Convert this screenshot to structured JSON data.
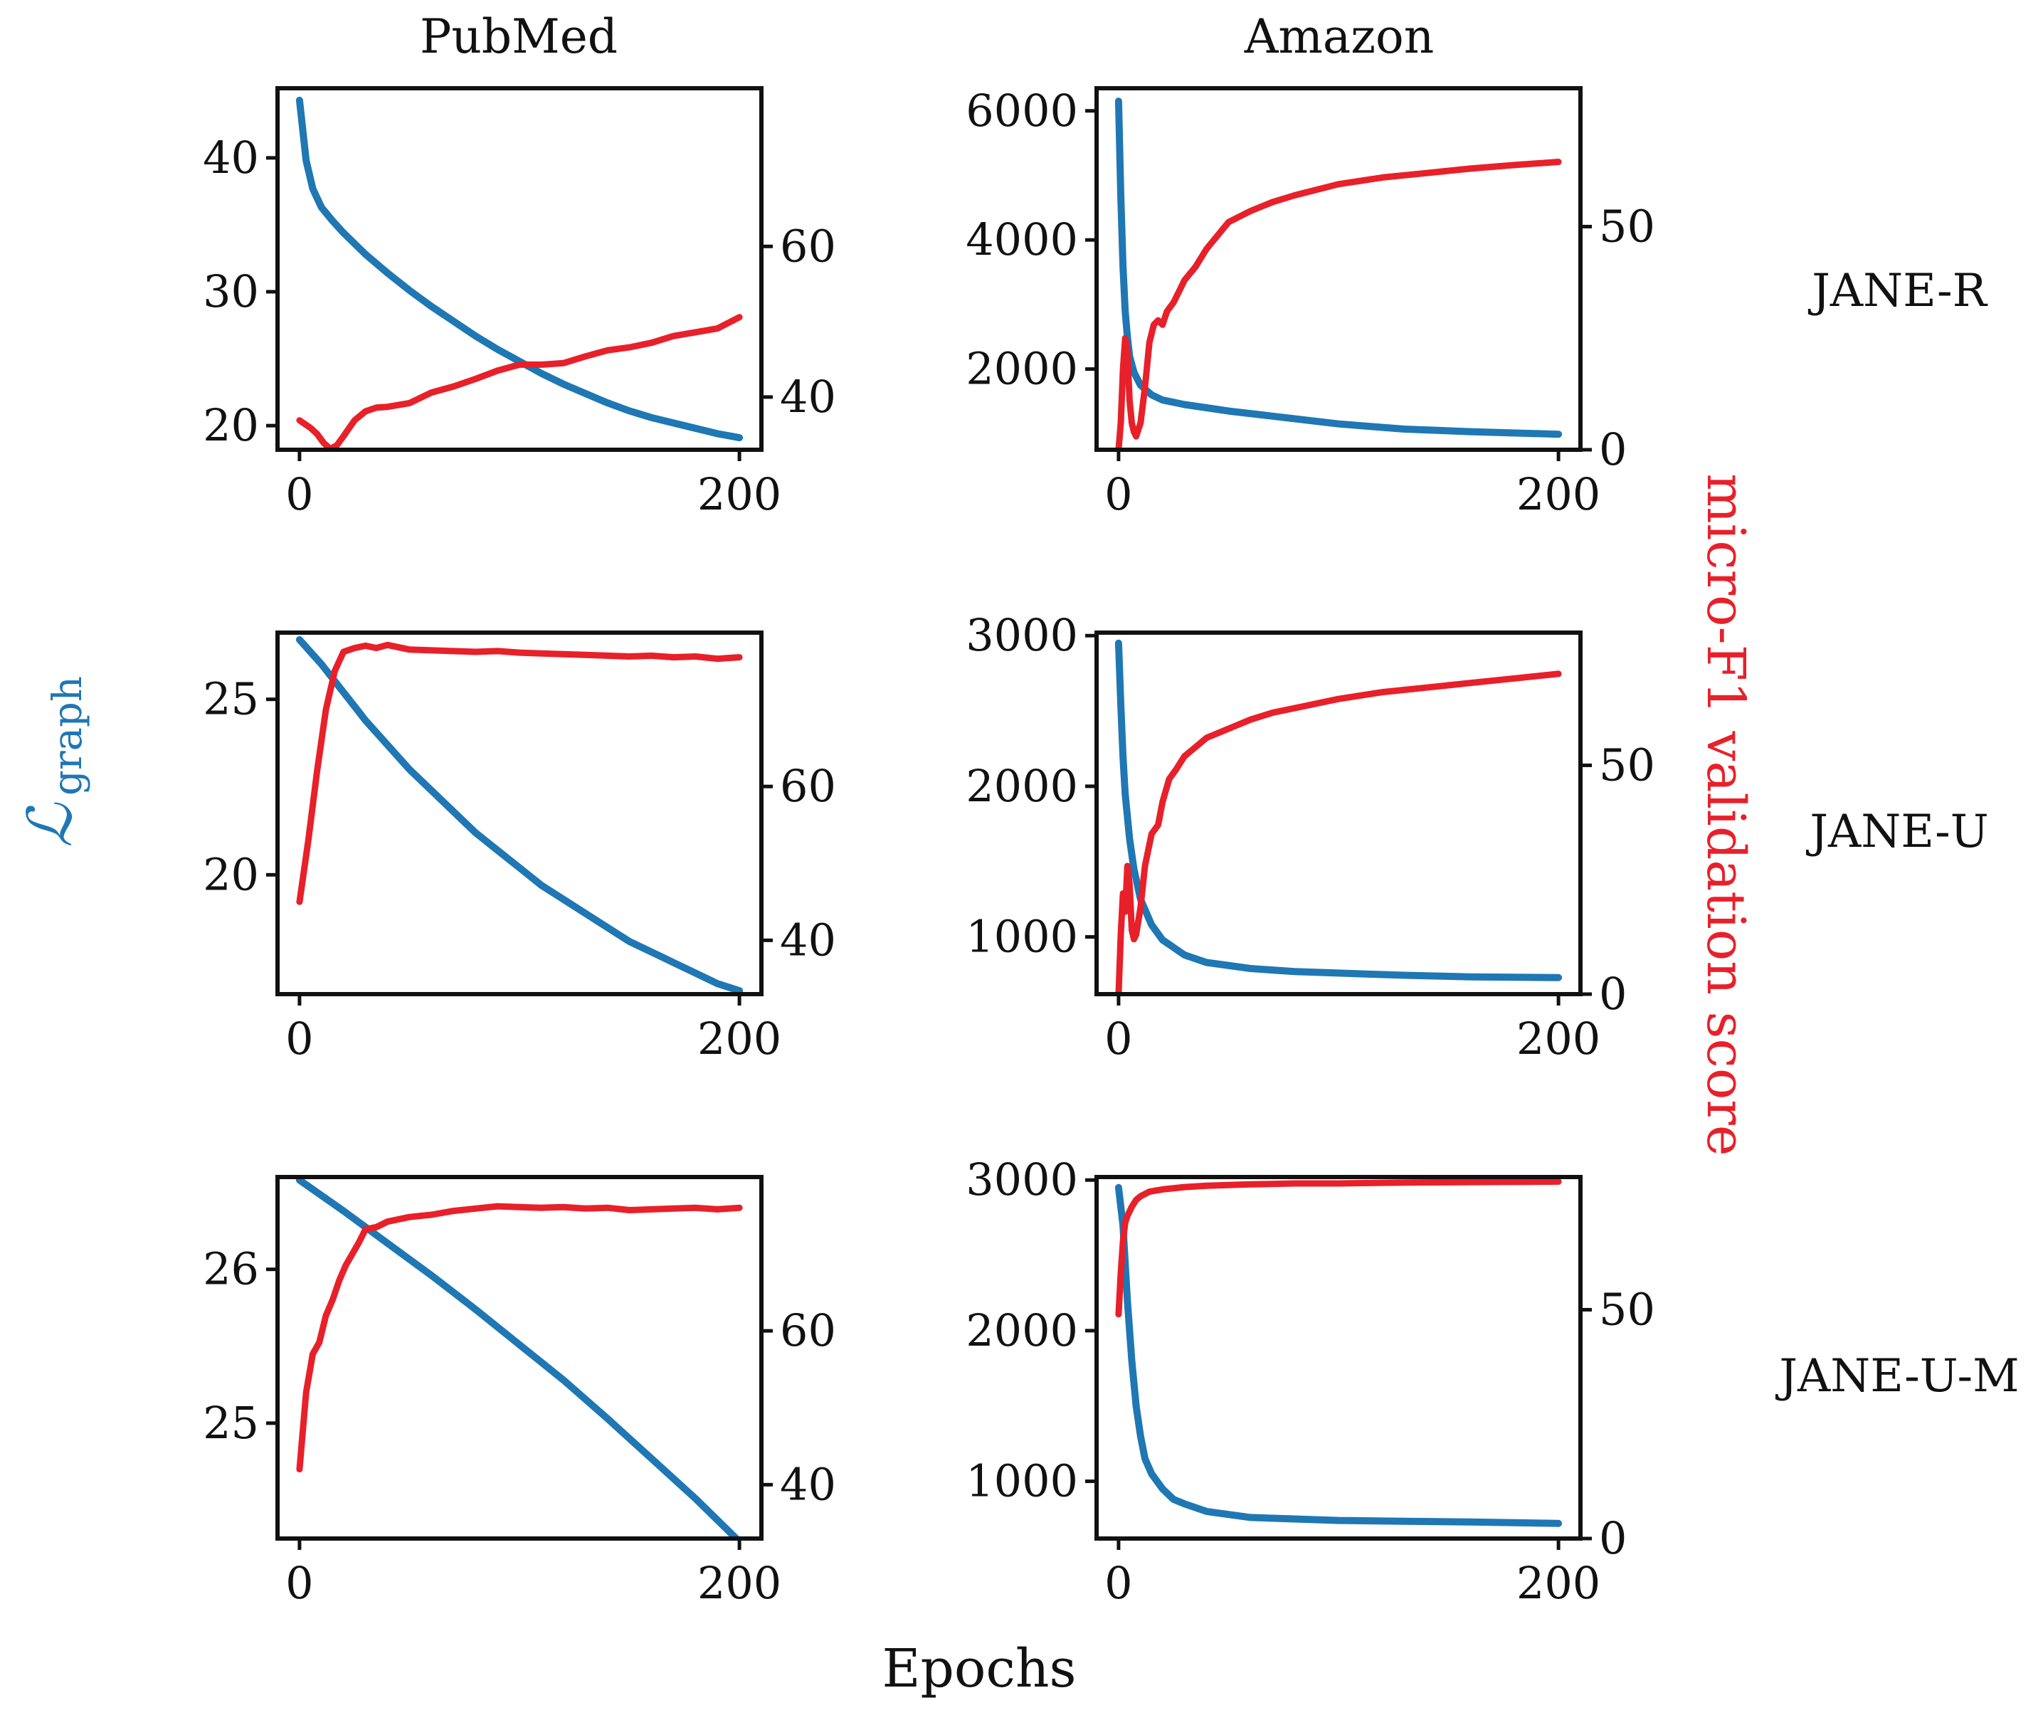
{
  "figure": {
    "column_titles": [
      "PubMed",
      "Amazon"
    ],
    "row_labels": [
      "JANE-R",
      "JANE-U",
      "JANE-U-M"
    ],
    "xlabel": "Epochs",
    "left_ylabel_main": "ℒ",
    "left_ylabel_sub": "graph",
    "right_ylabel": "micro-F1 validation score",
    "colors": {
      "loss": "#1f77b4",
      "f1": "#e8202a",
      "axis": "#111111"
    }
  },
  "chart_data": [
    {
      "type": "line",
      "dataset": "PubMed",
      "model": "JANE-R",
      "xlim": [
        -10,
        210
      ],
      "xticks": [
        0,
        200
      ],
      "y_left_lim": [
        18.2,
        45.2
      ],
      "y_left_ticks": [
        20,
        30,
        40
      ],
      "y_right_lim": [
        33,
        81
      ],
      "y_right_ticks": [
        40,
        60
      ],
      "loss": {
        "name": "L_graph",
        "x": [
          0,
          3,
          6,
          10,
          15,
          20,
          30,
          40,
          50,
          60,
          70,
          80,
          90,
          100,
          110,
          120,
          130,
          140,
          150,
          160,
          170,
          180,
          190,
          200
        ],
        "y": [
          44.3,
          39.8,
          37.7,
          36.3,
          35.3,
          34.4,
          32.8,
          31.4,
          30.1,
          28.9,
          27.8,
          26.7,
          25.7,
          24.8,
          23.9,
          23.1,
          22.4,
          21.7,
          21.1,
          20.6,
          20.2,
          19.8,
          19.4,
          19.1
        ]
      },
      "f1": {
        "name": "micro-F1",
        "x": [
          0,
          5,
          8,
          11,
          14,
          17,
          20,
          25,
          30,
          35,
          40,
          50,
          60,
          70,
          80,
          90,
          100,
          110,
          120,
          130,
          140,
          150,
          160,
          170,
          180,
          190,
          200
        ],
        "y": [
          36.9,
          35.9,
          35.1,
          33.9,
          33.1,
          33.6,
          34.8,
          36.9,
          38.1,
          38.6,
          38.7,
          39.2,
          40.6,
          41.4,
          42.4,
          43.5,
          44.3,
          44.3,
          44.5,
          45.4,
          46.2,
          46.6,
          47.2,
          48.1,
          48.6,
          49.1,
          50.6
        ]
      }
    },
    {
      "type": "line",
      "dataset": "Amazon",
      "model": "JANE-R",
      "xlim": [
        -10,
        210
      ],
      "xticks": [
        0,
        200
      ],
      "y_left_lim": [
        750,
        6350
      ],
      "y_left_ticks": [
        2000,
        4000,
        6000
      ],
      "y_right_lim": [
        0,
        81
      ],
      "y_right_ticks": [
        0,
        50
      ],
      "loss": {
        "name": "L_graph",
        "x": [
          0,
          1,
          2,
          3,
          4,
          5,
          7,
          10,
          15,
          20,
          30,
          40,
          50,
          70,
          100,
          130,
          160,
          200
        ],
        "y": [
          6150,
          4700,
          3600,
          2900,
          2500,
          2200,
          1950,
          1750,
          1600,
          1520,
          1450,
          1400,
          1350,
          1270,
          1150,
          1070,
          1030,
          990
        ]
      },
      "f1": {
        "name": "micro-F1",
        "x": [
          0,
          1,
          2,
          3,
          4,
          5,
          6,
          7,
          8,
          10,
          12,
          14,
          16,
          18,
          20,
          22,
          25,
          28,
          30,
          35,
          40,
          50,
          60,
          70,
          80,
          100,
          120,
          140,
          160,
          180,
          200
        ],
        "y": [
          0,
          6,
          18,
          25,
          22,
          11,
          6,
          4,
          3,
          6,
          14,
          24,
          28,
          29,
          28,
          31,
          33,
          36,
          38,
          41,
          45,
          51,
          53.5,
          55.5,
          57,
          59.5,
          61,
          62,
          63,
          63.8,
          64.5
        ]
      }
    },
    {
      "type": "line",
      "dataset": "PubMed",
      "model": "JANE-U",
      "xlim": [
        -10,
        210
      ],
      "xticks": [
        0,
        200
      ],
      "y_left_lim": [
        16.6,
        26.9
      ],
      "y_left_ticks": [
        20,
        25
      ],
      "y_right_lim": [
        33,
        80
      ],
      "y_right_ticks": [
        40,
        60
      ],
      "loss": {
        "name": "L_graph",
        "x": [
          0,
          10,
          20,
          30,
          40,
          50,
          60,
          70,
          80,
          90,
          100,
          110,
          120,
          130,
          140,
          150,
          160,
          170,
          180,
          190,
          200
        ],
        "y": [
          26.7,
          26.0,
          25.2,
          24.4,
          23.7,
          23.0,
          22.4,
          21.8,
          21.2,
          20.7,
          20.2,
          19.7,
          19.3,
          18.9,
          18.5,
          18.1,
          17.8,
          17.5,
          17.2,
          16.9,
          16.7
        ]
      },
      "f1": {
        "name": "micro-F1",
        "x": [
          0,
          4,
          8,
          12,
          16,
          20,
          25,
          30,
          35,
          40,
          50,
          60,
          70,
          80,
          90,
          100,
          110,
          120,
          130,
          140,
          150,
          160,
          170,
          180,
          190,
          200
        ],
        "y": [
          45,
          53,
          62,
          70,
          75,
          77.5,
          78,
          78.3,
          78,
          78.4,
          77.8,
          77.7,
          77.6,
          77.5,
          77.6,
          77.4,
          77.3,
          77.2,
          77.1,
          77.0,
          76.9,
          77.0,
          76.8,
          76.9,
          76.6,
          76.8
        ]
      }
    },
    {
      "type": "line",
      "dataset": "Amazon",
      "model": "JANE-U",
      "xlim": [
        -10,
        210
      ],
      "xticks": [
        0,
        200
      ],
      "y_left_lim": [
        620,
        3020
      ],
      "y_left_ticks": [
        1000,
        2000,
        3000
      ],
      "y_right_lim": [
        0,
        79
      ],
      "y_right_ticks": [
        0,
        50
      ],
      "loss": {
        "name": "L_graph",
        "x": [
          0,
          1,
          2,
          3,
          5,
          7,
          10,
          15,
          20,
          30,
          40,
          60,
          80,
          100,
          130,
          160,
          200
        ],
        "y": [
          2950,
          2550,
          2200,
          1950,
          1650,
          1450,
          1250,
          1080,
          980,
          880,
          830,
          790,
          770,
          760,
          745,
          735,
          730
        ]
      },
      "f1": {
        "name": "micro-F1",
        "x": [
          0,
          1,
          2,
          3,
          4,
          5,
          6,
          7,
          8,
          10,
          12,
          15,
          18,
          20,
          23,
          26,
          30,
          35,
          40,
          50,
          60,
          70,
          80,
          100,
          120,
          140,
          160,
          180,
          200
        ],
        "y": [
          0,
          13,
          22,
          18,
          28,
          24,
          14,
          12,
          13,
          19,
          28,
          35,
          37,
          42,
          47,
          49,
          52,
          54,
          56,
          58,
          60,
          61.5,
          62.5,
          64.5,
          66,
          67,
          68,
          69,
          70
        ]
      }
    },
    {
      "type": "line",
      "dataset": "PubMed",
      "model": "JANE-U-M",
      "xlim": [
        -10,
        210
      ],
      "xticks": [
        0,
        200
      ],
      "y_left_lim": [
        24.25,
        26.6
      ],
      "y_left_ticks": [
        25,
        26
      ],
      "y_right_lim": [
        33,
        80
      ],
      "y_right_ticks": [
        40,
        60
      ],
      "loss": {
        "name": "L_graph",
        "x": [
          0,
          20,
          40,
          60,
          80,
          100,
          120,
          140,
          160,
          180,
          200
        ],
        "y": [
          26.58,
          26.38,
          26.17,
          25.96,
          25.74,
          25.51,
          25.28,
          25.03,
          24.77,
          24.51,
          24.23
        ]
      },
      "f1": {
        "name": "micro-F1",
        "x": [
          0,
          3,
          6,
          9,
          12,
          15,
          18,
          21,
          24,
          27,
          30,
          35,
          40,
          50,
          60,
          70,
          80,
          90,
          100,
          110,
          120,
          130,
          140,
          150,
          160,
          170,
          180,
          190,
          200
        ],
        "y": [
          42,
          52,
          57,
          58.5,
          62,
          64,
          66.5,
          68.5,
          70,
          71.5,
          73.2,
          73.5,
          74.2,
          74.8,
          75.1,
          75.6,
          75.9,
          76.2,
          76.1,
          76.0,
          76.1,
          75.9,
          76.0,
          75.7,
          75.8,
          75.9,
          76.0,
          75.8,
          76.0
        ]
      }
    },
    {
      "type": "line",
      "dataset": "Amazon",
      "model": "JANE-U-M",
      "xlim": [
        -10,
        210
      ],
      "xticks": [
        0,
        200
      ],
      "y_left_lim": [
        620,
        3020
      ],
      "y_left_ticks": [
        1000,
        2000,
        3000
      ],
      "y_right_lim": [
        0,
        79
      ],
      "y_right_ticks": [
        0,
        50
      ],
      "loss": {
        "name": "L_graph",
        "x": [
          0,
          2,
          4,
          6,
          8,
          10,
          12,
          15,
          20,
          25,
          30,
          40,
          60,
          80,
          100,
          130,
          160,
          200
        ],
        "y": [
          2950,
          2700,
          2200,
          1800,
          1500,
          1300,
          1150,
          1050,
          950,
          880,
          850,
          800,
          760,
          750,
          740,
          735,
          730,
          720
        ]
      },
      "f1": {
        "name": "micro-F1",
        "x": [
          0,
          1,
          2,
          3,
          4,
          6,
          8,
          10,
          14,
          20,
          30,
          40,
          60,
          80,
          100,
          130,
          160,
          200
        ],
        "y": [
          49,
          58,
          65,
          69,
          70.5,
          72.5,
          74,
          74.8,
          75.8,
          76.3,
          76.8,
          77.1,
          77.4,
          77.6,
          77.6,
          77.8,
          77.9,
          78
        ]
      }
    }
  ]
}
